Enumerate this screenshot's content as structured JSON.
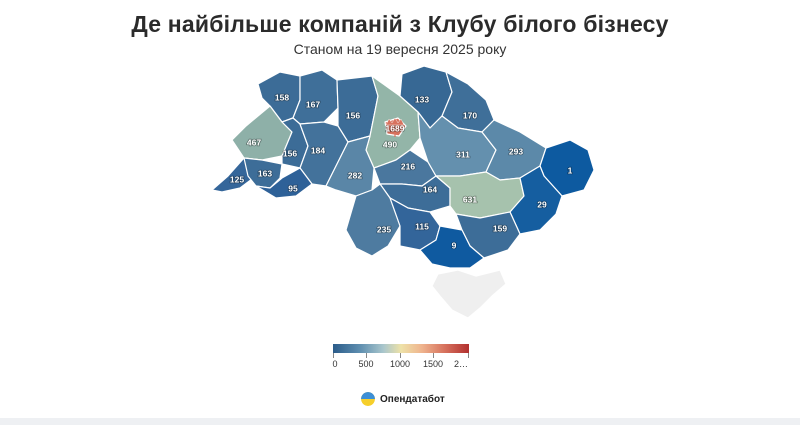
{
  "title": "Де найбільше компаній з Клубу білого бізнесу",
  "subtitle": "Станом на 19 вересня 2025 року",
  "regions": [
    {
      "id": "volyn",
      "value": "158",
      "color": "#3c6c97"
    },
    {
      "id": "rivne",
      "value": "167",
      "color": "#3f6f99"
    },
    {
      "id": "zhytomyr",
      "value": "156",
      "color": "#3c6c97"
    },
    {
      "id": "kyiv-oblast",
      "value": "490",
      "color": "#93b5a8"
    },
    {
      "id": "kyiv-city",
      "value": "1689",
      "color": "#d7725e"
    },
    {
      "id": "chernihiv",
      "value": "133",
      "color": "#376894"
    },
    {
      "id": "sumy",
      "value": "170",
      "color": "#3f6f99"
    },
    {
      "id": "lviv",
      "value": "467",
      "color": "#8eb0a8"
    },
    {
      "id": "ternopil",
      "value": "156",
      "color": "#3c6c97"
    },
    {
      "id": "khmelnytskyi",
      "value": "184",
      "color": "#43729b"
    },
    {
      "id": "vinnytsia",
      "value": "282",
      "color": "#5a86a7"
    },
    {
      "id": "cherkasy",
      "value": "216",
      "color": "#4a779e"
    },
    {
      "id": "poltava",
      "value": "311",
      "color": "#6490ae"
    },
    {
      "id": "kharkiv",
      "value": "293",
      "color": "#5c89a9"
    },
    {
      "id": "luhansk",
      "value": "1",
      "color": "#0d5aa0"
    },
    {
      "id": "zakarpattia",
      "value": "125",
      "color": "#35669a"
    },
    {
      "id": "ivano-frankivsk",
      "value": "163",
      "color": "#3d6d98"
    },
    {
      "id": "chernivtsi",
      "value": "95",
      "color": "#2e6198"
    },
    {
      "id": "kirovohrad",
      "value": "164",
      "color": "#3d6d98"
    },
    {
      "id": "dnipropetrovsk",
      "value": "631",
      "color": "#a6c2ad"
    },
    {
      "id": "donetsk",
      "value": "29",
      "color": "#155ea0"
    },
    {
      "id": "odesa",
      "value": "235",
      "color": "#4e7ba0"
    },
    {
      "id": "mykolaiv",
      "value": "115",
      "color": "#33659a"
    },
    {
      "id": "zaporizhzhia",
      "value": "159",
      "color": "#3d6d98"
    },
    {
      "id": "kherson",
      "value": "9",
      "color": "#0f5aa0"
    },
    {
      "id": "crimea",
      "value": "",
      "color": "#efefef"
    }
  ],
  "legend": {
    "labels": [
      "0",
      "500",
      "1000",
      "1500",
      "2…"
    ]
  },
  "capital_icon": "city-marker-icon",
  "brand": {
    "name": "Опендатабот",
    "logo": "ukraine-flag-circle-icon"
  }
}
